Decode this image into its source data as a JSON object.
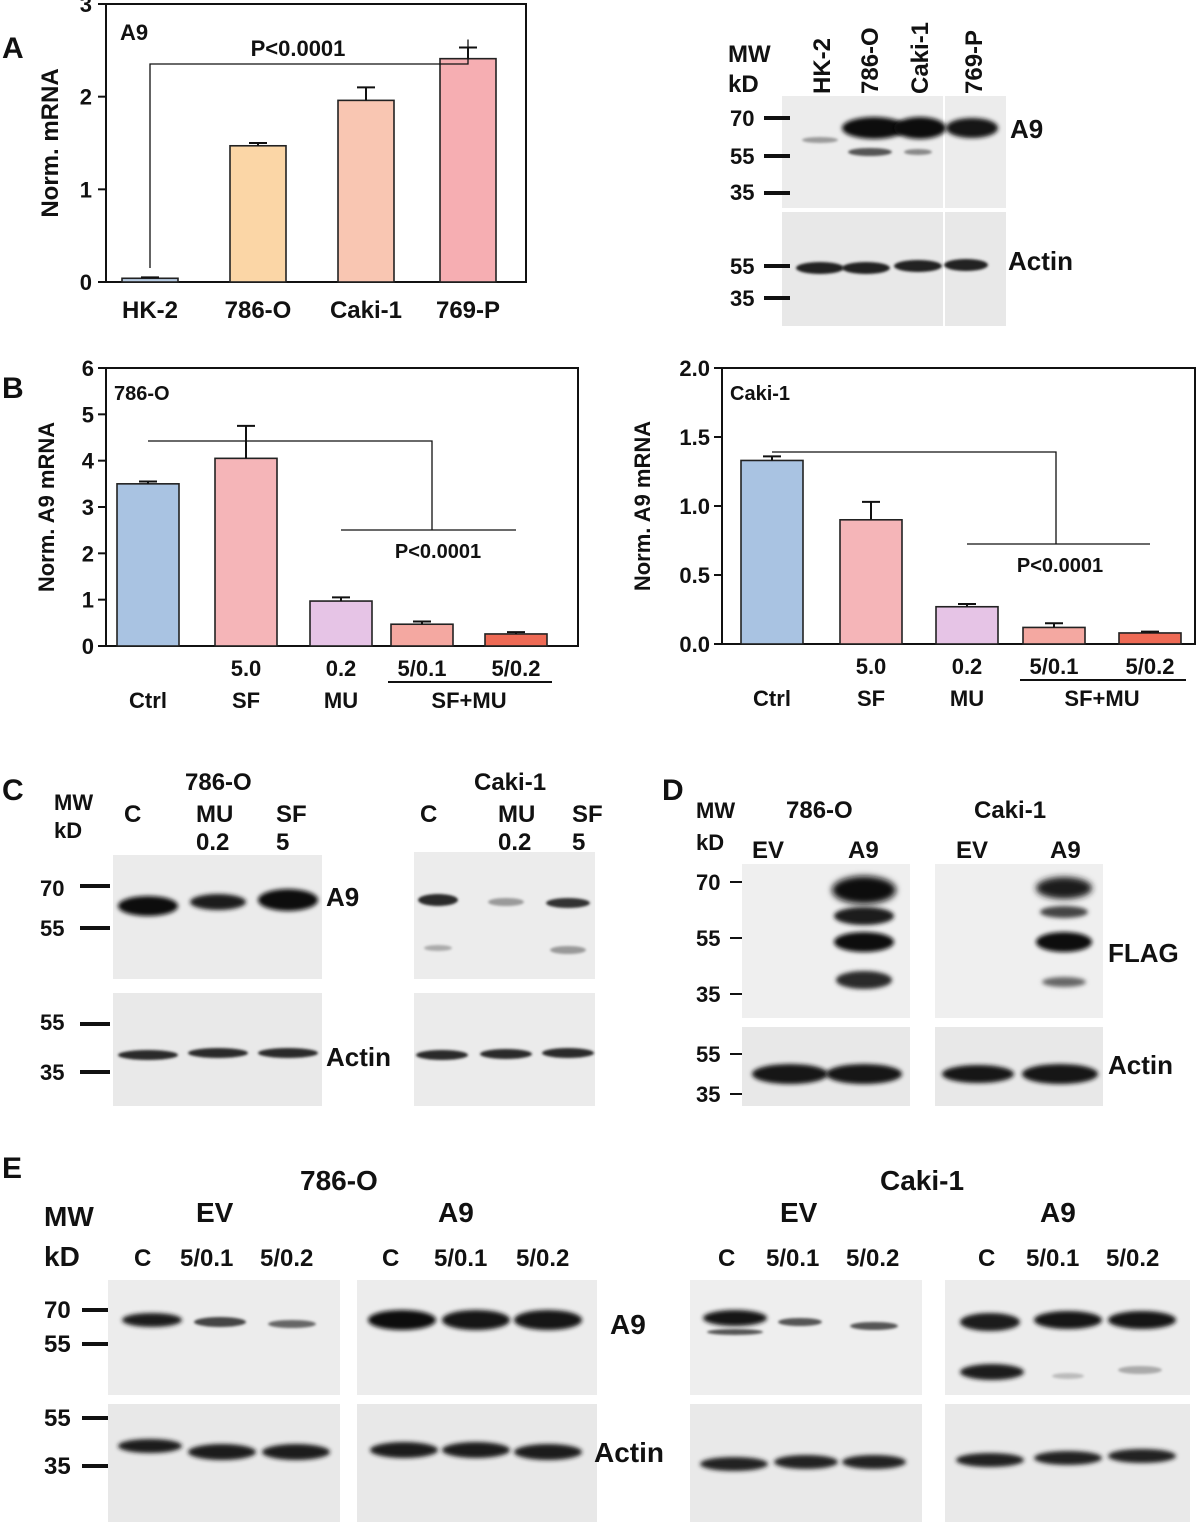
{
  "panel_letters": {
    "A": "A",
    "B": "B",
    "C": "C",
    "D": "D",
    "E": "E"
  },
  "chart_data": [
    {
      "type": "bar",
      "panel": "A",
      "title": "A9",
      "ylabel": "Norm. mRNA",
      "ylim": [
        0,
        3
      ],
      "yticks": [
        "0",
        "1",
        "2",
        "3"
      ],
      "categories": [
        "HK-2",
        "786-O",
        "Caki-1",
        "769-P"
      ],
      "values": [
        0.04,
        1.47,
        1.96,
        2.41
      ],
      "errors": [
        0.01,
        0.03,
        0.14,
        0.12
      ],
      "colors": [
        "#b9cde4",
        "#fbd6a6",
        "#f9c6b2",
        "#f6aeb2"
      ],
      "annotation": "P<0.0001"
    },
    {
      "type": "bar",
      "panel": "B",
      "title": "786-O",
      "ylabel": "Norm. A9 mRNA",
      "ylim": [
        0,
        6
      ],
      "yticks": [
        "0",
        "1",
        "2",
        "3",
        "4",
        "5",
        "6"
      ],
      "doses": [
        "",
        "5.0",
        "0.2",
        "5/0.1",
        "5/0.2"
      ],
      "groups": [
        "Ctrl",
        "SF",
        "MU",
        "SF+MU"
      ],
      "values": [
        3.5,
        4.05,
        0.97,
        0.47,
        0.26
      ],
      "errors": [
        0.05,
        0.7,
        0.08,
        0.06,
        0.04
      ],
      "colors": [
        "#a9c3e2",
        "#f5b5b8",
        "#e6c4e6",
        "#f4a8a1",
        "#ee6a55"
      ],
      "annotation": "P<0.0001"
    },
    {
      "type": "bar",
      "panel": "B",
      "title": "Caki-1",
      "ylabel": "Norm. A9 mRNA",
      "ylim": [
        0,
        2
      ],
      "yticks": [
        "0.0",
        "0.5",
        "1.0",
        "1.5",
        "2.0"
      ],
      "doses": [
        "",
        "5.0",
        "0.2",
        "5/0.1",
        "5/0.2"
      ],
      "groups": [
        "Ctrl",
        "SF",
        "MU",
        "SF+MU"
      ],
      "values": [
        1.33,
        0.9,
        0.27,
        0.12,
        0.08
      ],
      "errors": [
        0.03,
        0.13,
        0.02,
        0.03,
        0.01
      ],
      "colors": [
        "#a9c3e2",
        "#f5b5b8",
        "#e6c4e6",
        "#f4a8a1",
        "#ee6a55"
      ],
      "annotation": "P<0.0001"
    }
  ],
  "blots": {
    "A": {
      "mw_label": [
        "MW",
        "kD"
      ],
      "lanes": [
        "HK-2",
        "786-O",
        "Caki-1",
        "769-P"
      ],
      "top_markers": [
        "70",
        "55",
        "35"
      ],
      "bottom_markers": [
        "55",
        "35"
      ],
      "top_label": "A9",
      "bottom_label": "Actin"
    },
    "C": {
      "mw_label": [
        "MW",
        "kD"
      ],
      "left_title": "786-O",
      "right_title": "Caki-1",
      "lane_c": "C",
      "lane_mu": [
        "MU",
        "0.2"
      ],
      "lane_sf": [
        "SF",
        "5"
      ],
      "top_markers": [
        "70",
        "55"
      ],
      "bottom_markers": [
        "55",
        "35"
      ],
      "top_label": "A9",
      "bottom_label": "Actin"
    },
    "D": {
      "mw_label": [
        "MW",
        "kD"
      ],
      "left_title": "786-O",
      "right_title": "Caki-1",
      "lanes": [
        "EV",
        "A9"
      ],
      "top_markers": [
        "70",
        "55",
        "35"
      ],
      "bottom_markers": [
        "55",
        "35"
      ],
      "top_label": "FLAG",
      "bottom_label": "Actin"
    },
    "E": {
      "mw_label": [
        "MW",
        "kD"
      ],
      "left_title": "786-O",
      "right_title": "Caki-1",
      "group_ev": "EV",
      "group_a9": "A9",
      "lanes": [
        "C",
        "5/0.1",
        "5/0.2"
      ],
      "top_markers": [
        "70",
        "55"
      ],
      "bottom_markers": [
        "55",
        "35"
      ],
      "top_label": "A9",
      "bottom_label": "Actin"
    }
  }
}
